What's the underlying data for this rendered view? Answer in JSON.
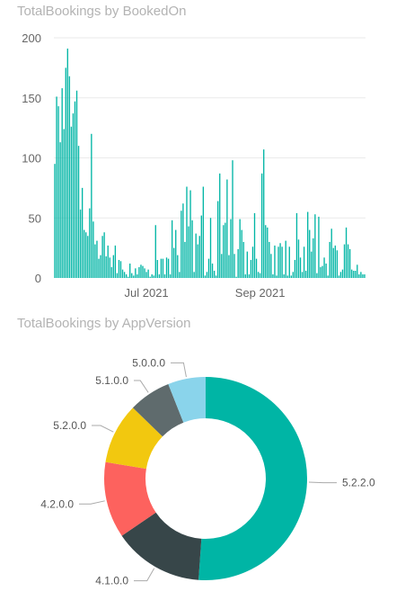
{
  "chart_data": [
    {
      "type": "bar",
      "title": "TotalBookings by BookedOn",
      "xlabel": "",
      "ylabel": "",
      "ylim": [
        0,
        200
      ],
      "yticks": [
        0,
        50,
        100,
        150,
        200
      ],
      "xticks": [
        {
          "label": "Jul 2021",
          "date": "2021-07-01"
        },
        {
          "label": "Sep 2021",
          "date": "2021-09-01"
        }
      ],
      "start_date": "2021-05-12",
      "grid": true,
      "color": "#00B5A5",
      "values": [
        95,
        151,
        143,
        113,
        158,
        124,
        175,
        191,
        168,
        126,
        137,
        147,
        156,
        110,
        57,
        75,
        40,
        38,
        35,
        58,
        120,
        47,
        28,
        31,
        16,
        19,
        35,
        38,
        18,
        27,
        17,
        9,
        19,
        27,
        4,
        15,
        14,
        7,
        5,
        3,
        1,
        12,
        4,
        2,
        8,
        3,
        9,
        11,
        10,
        8,
        5,
        7,
        1,
        3,
        2,
        44,
        15,
        3,
        16,
        16,
        3,
        17,
        16,
        3,
        48,
        25,
        40,
        19,
        5,
        56,
        62,
        30,
        76,
        43,
        73,
        48,
        5,
        37,
        28,
        35,
        52,
        76,
        2,
        5,
        16,
        50,
        12,
        6,
        2,
        64,
        87,
        20,
        44,
        46,
        82,
        19,
        49,
        98,
        20,
        1,
        24,
        49,
        40,
        30,
        3,
        22,
        3,
        15,
        26,
        54,
        16,
        5,
        4,
        87,
        107,
        44,
        42,
        30,
        20,
        3,
        27,
        2,
        26,
        29,
        26,
        3,
        31,
        2,
        26,
        2,
        5,
        15,
        54,
        32,
        17,
        5,
        26,
        6,
        55,
        40,
        22,
        33,
        53,
        4,
        51,
        9,
        10,
        17,
        12,
        2,
        30,
        41,
        25,
        27,
        23,
        2,
        5,
        7,
        28,
        42,
        28,
        24,
        7,
        6,
        6,
        11,
        3,
        5,
        3,
        3
      ]
    },
    {
      "type": "pie",
      "title": "TotalBookings by AppVersion",
      "donut": true,
      "legend": "labels-outside",
      "categories": [
        "5.2.2.0",
        "4.1.0.0",
        "4.2.0.0",
        "5.2.0.0",
        "5.1.0.0",
        "5.0.0.0"
      ],
      "values": [
        50.2,
        14.1,
        11.9,
        9.5,
        6.6,
        5.9
      ],
      "colors": [
        "#00B5A5",
        "#374649",
        "#FD625E",
        "#F2C80F",
        "#5F6B6D",
        "#8AD4EB"
      ]
    }
  ]
}
